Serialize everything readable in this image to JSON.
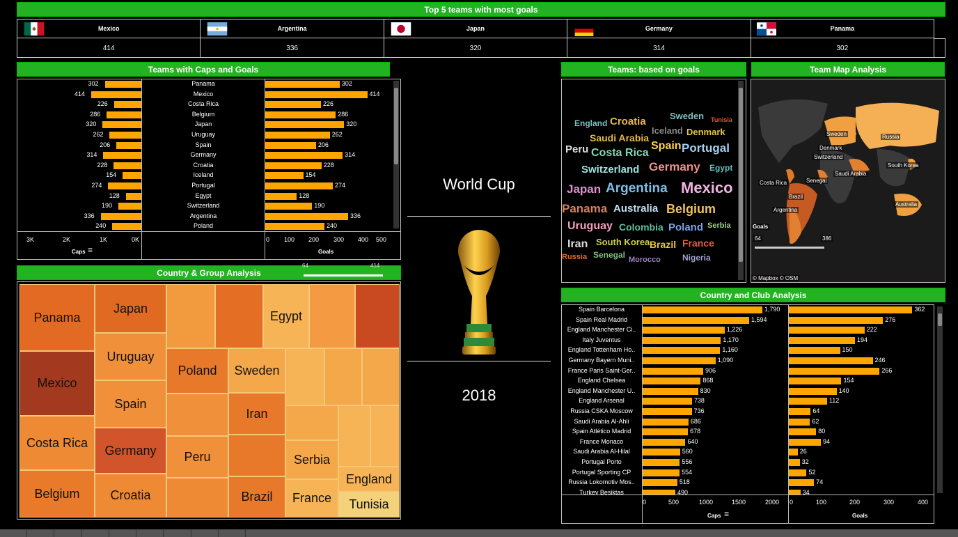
{
  "top5": {
    "title": "Top 5 teams with most goals",
    "teams": [
      {
        "name": "Mexico",
        "value": "414"
      },
      {
        "name": "Argentina",
        "value": "336"
      },
      {
        "name": "Japan",
        "value": "320"
      },
      {
        "name": "Germany",
        "value": "314"
      },
      {
        "name": "Panama",
        "value": "302"
      }
    ]
  },
  "caps_goals": {
    "title": "Teams with Caps and Goals",
    "caps_axis_label": "Caps",
    "goals_axis_label": "Goals",
    "caps_ticks": [
      "3K",
      "2K",
      "1K",
      "0K"
    ],
    "goals_ticks": [
      "0",
      "100",
      "200",
      "300",
      "400",
      "500"
    ],
    "caps_max": 3000,
    "goals_max": 500,
    "rows": [
      {
        "team": "Panama",
        "caps": "302",
        "caps_val": 302,
        "goals": "302",
        "goals_val": 302
      },
      {
        "team": "Mexico",
        "caps": "414",
        "caps_val": 414,
        "goals": "414",
        "goals_val": 414
      },
      {
        "team": "Costa Rica",
        "caps": "226",
        "caps_val": 226,
        "goals": "226",
        "goals_val": 226
      },
      {
        "team": "Belgium",
        "caps": "286",
        "caps_val": 286,
        "goals": "286",
        "goals_val": 286
      },
      {
        "team": "Japan",
        "caps": "320",
        "caps_val": 320,
        "goals": "320",
        "goals_val": 320
      },
      {
        "team": "Uruguay",
        "caps": "262",
        "caps_val": 262,
        "goals": "262",
        "goals_val": 262
      },
      {
        "team": "Spain",
        "caps": "206",
        "caps_val": 206,
        "goals": "206",
        "goals_val": 206
      },
      {
        "team": "Germany",
        "caps": "314",
        "caps_val": 314,
        "goals": "314",
        "goals_val": 314
      },
      {
        "team": "Croatia",
        "caps": "228",
        "caps_val": 228,
        "goals": "228",
        "goals_val": 228
      },
      {
        "team": "Iceland",
        "caps": "154",
        "caps_val": 154,
        "goals": "154",
        "goals_val": 154
      },
      {
        "team": "Portugal",
        "caps": "274",
        "caps_val": 274,
        "goals": "274",
        "goals_val": 274
      },
      {
        "team": "Egypt",
        "caps": "128",
        "caps_val": 128,
        "goals": "128",
        "goals_val": 128
      },
      {
        "team": "Switzerland",
        "caps": "190",
        "caps_val": 190,
        "goals": "190",
        "goals_val": 190
      },
      {
        "team": "Argentina",
        "caps": "336",
        "caps_val": 336,
        "goals": "336",
        "goals_val": 336
      },
      {
        "team": "Poland",
        "caps": "240",
        "caps_val": 240,
        "goals": "240",
        "goals_val": 240
      }
    ]
  },
  "center": {
    "title": "World Cup",
    "year": "2018"
  },
  "wordcloud": {
    "title": "Teams: based on goals",
    "words": [
      {
        "text": "England",
        "color": "#7fbfbf"
      },
      {
        "text": "Croatia",
        "color": "#e6b84d"
      },
      {
        "text": "Sweden",
        "color": "#7fbfbf"
      },
      {
        "text": "Tunisia",
        "color": "#e0563a"
      },
      {
        "text": "Saudi Arabia",
        "color": "#e6b84d"
      },
      {
        "text": "Iceland",
        "color": "#888888"
      },
      {
        "text": "Denmark",
        "color": "#e6c24d"
      },
      {
        "text": "Peru",
        "color": "#dddddd"
      },
      {
        "text": "Costa Rica",
        "color": "#7fd9b3"
      },
      {
        "text": "Spain",
        "color": "#ffd24d"
      },
      {
        "text": "Portugal",
        "color": "#9fd0f0"
      },
      {
        "text": "Switzerland",
        "color": "#9fe0e0"
      },
      {
        "text": "Germany",
        "color": "#ee8f8f"
      },
      {
        "text": "Egypt",
        "color": "#5fbfbf"
      },
      {
        "text": "Japan",
        "color": "#e28fd0"
      },
      {
        "text": "Argentina",
        "color": "#7fbfe6"
      },
      {
        "text": "Mexico",
        "color": "#f0b3e0"
      },
      {
        "text": "Panama",
        "color": "#d9805a"
      },
      {
        "text": "Australia",
        "color": "#bfe0f0"
      },
      {
        "text": "Belgium",
        "color": "#f0c060"
      },
      {
        "text": "Uruguay",
        "color": "#f0a0c0"
      },
      {
        "text": "Colombia",
        "color": "#5fbf9f"
      },
      {
        "text": "Poland",
        "color": "#7fa0e6"
      },
      {
        "text": "Serbia",
        "color": "#a0d080"
      },
      {
        "text": "Iran",
        "color": "#dddddd"
      },
      {
        "text": "South Korea",
        "color": "#d0d050"
      },
      {
        "text": "Brazil",
        "color": "#f0c040"
      },
      {
        "text": "France",
        "color": "#e06040"
      },
      {
        "text": "Russia",
        "color": "#e07030"
      },
      {
        "text": "Senegal",
        "color": "#7fbf7f"
      },
      {
        "text": "Morocco",
        "color": "#a080c0"
      },
      {
        "text": "Nigeria",
        "color": "#a0a0d0"
      }
    ]
  },
  "map": {
    "title": "Team Map Analysis",
    "legend_label": "Goals",
    "legend_min": "64",
    "legend_max": "386",
    "attribution": "© Mapbox © OSM",
    "labels": [
      "Sweden",
      "Russia",
      "Denmark",
      "Switzerland",
      "South Korea",
      "Saudi Arabia",
      "Senegal",
      "Costa Rica",
      "Brazil",
      "Argentina",
      "Australia"
    ]
  },
  "treemap": {
    "title": "Country & Group Analysis",
    "slider_min": "64",
    "slider_max": "414",
    "labels": [
      "Panama",
      "Japan",
      "Egypt",
      "Uruguay",
      "Mexico",
      "Poland",
      "Sweden",
      "Spain",
      "Iran",
      "Costa Rica",
      "Germany",
      "Peru",
      "Serbia",
      "England",
      "Belgium",
      "Croatia",
      "Brazil",
      "France",
      "Tunisia"
    ]
  },
  "club": {
    "title": "Country and Club Analysis",
    "caps_axis_label": "Caps",
    "goals_axis_label": "Goals",
    "caps_ticks": [
      "0",
      "500",
      "1000",
      "1500",
      "2000"
    ],
    "goals_ticks": [
      "0",
      "100",
      "200",
      "300",
      "400"
    ],
    "caps_max": 2000,
    "goals_max": 400,
    "rows": [
      {
        "club": "Spain Barcelona",
        "caps": "1,790",
        "caps_val": 1790,
        "goals": "362",
        "goals_val": 362
      },
      {
        "club": "Spain Real Madrid",
        "caps": "1,594",
        "caps_val": 1594,
        "goals": "276",
        "goals_val": 276
      },
      {
        "club": "England Manchester Ci..",
        "caps": "1,226",
        "caps_val": 1226,
        "goals": "222",
        "goals_val": 222
      },
      {
        "club": "Italy Juventus",
        "caps": "1,170",
        "caps_val": 1170,
        "goals": "194",
        "goals_val": 194
      },
      {
        "club": "England Tottenham Ho..",
        "caps": "1,160",
        "caps_val": 1160,
        "goals": "150",
        "goals_val": 150
      },
      {
        "club": "Germany Bayern Muni..",
        "caps": "1,090",
        "caps_val": 1090,
        "goals": "246",
        "goals_val": 246
      },
      {
        "club": "France Paris Saint-Ger..",
        "caps": "906",
        "caps_val": 906,
        "goals": "266",
        "goals_val": 266
      },
      {
        "club": "England Chelsea",
        "caps": "868",
        "caps_val": 868,
        "goals": "154",
        "goals_val": 154
      },
      {
        "club": "England Manchester U..",
        "caps": "830",
        "caps_val": 830,
        "goals": "140",
        "goals_val": 140
      },
      {
        "club": "England Arsenal",
        "caps": "738",
        "caps_val": 738,
        "goals": "112",
        "goals_val": 112
      },
      {
        "club": "Russia CSKA Moscow",
        "caps": "736",
        "caps_val": 736,
        "goals": "64",
        "goals_val": 64
      },
      {
        "club": "Saudi Arabia Al-Ahli",
        "caps": "686",
        "caps_val": 686,
        "goals": "62",
        "goals_val": 62
      },
      {
        "club": "Spain Atlético Madrid",
        "caps": "678",
        "caps_val": 678,
        "goals": "80",
        "goals_val": 80
      },
      {
        "club": "France Monaco",
        "caps": "640",
        "caps_val": 640,
        "goals": "94",
        "goals_val": 94
      },
      {
        "club": "Saudi Arabia Al-Hilal",
        "caps": "560",
        "caps_val": 560,
        "goals": "26",
        "goals_val": 26
      },
      {
        "club": "Portugal Porto",
        "caps": "556",
        "caps_val": 556,
        "goals": "32",
        "goals_val": 32
      },
      {
        "club": "Portugal Sporting CP",
        "caps": "554",
        "caps_val": 554,
        "goals": "52",
        "goals_val": 52
      },
      {
        "club": "Russia Lokomotiv Mos..",
        "caps": "518",
        "caps_val": 518,
        "goals": "74",
        "goals_val": 74
      },
      {
        "club": "Turkey Besiktas",
        "caps": "490",
        "caps_val": 490,
        "goals": "34",
        "goals_val": 34
      }
    ]
  },
  "colors": {
    "accent_green": "#22b222",
    "bar_orange": "#ffa500"
  }
}
